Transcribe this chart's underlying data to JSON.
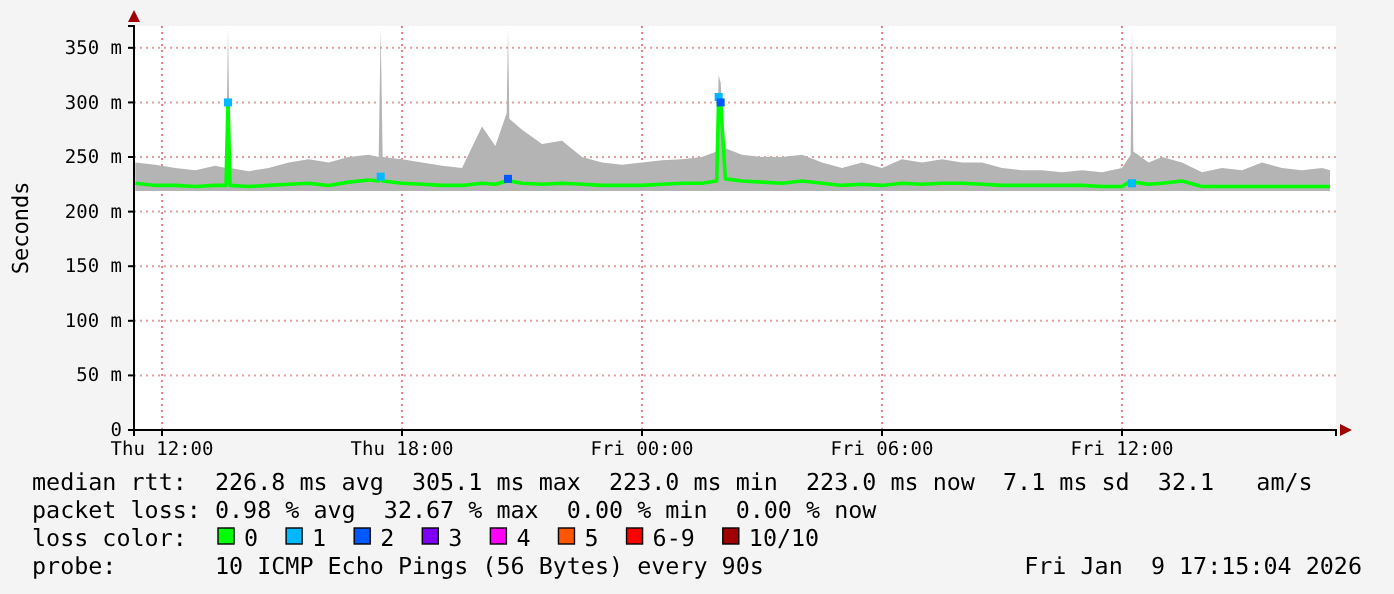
{
  "chart_data": {
    "type": "line",
    "ylabel": "Seconds",
    "legend_title": "loss color:",
    "legend": "bottom",
    "grid": true,
    "xlim": [
      "2026-01-08T11:18",
      "2026-01-09T17:21"
    ],
    "xticks": [
      {
        "value": "2026-01-08T12:00",
        "label": "Thu 12:00"
      },
      {
        "value": "2026-01-08T18:00",
        "label": "Thu 18:00"
      },
      {
        "value": "2026-01-09T00:00",
        "label": "Fri 00:00"
      },
      {
        "value": "2026-01-09T06:00",
        "label": "Fri 06:00"
      },
      {
        "value": "2026-01-09T12:00",
        "label": "Fri 12:00"
      }
    ],
    "ylim": [
      0,
      370
    ],
    "yticks": [
      0,
      {
        "value": 50,
        "label": "50 m"
      },
      {
        "value": 100,
        "label": "100 m"
      },
      {
        "value": 150,
        "label": "150 m"
      },
      {
        "value": 200,
        "label": "200 m"
      },
      {
        "value": 250,
        "label": "250 m"
      },
      {
        "value": 300,
        "label": "300 m"
      },
      {
        "value": 350,
        "label": "350 m"
      }
    ],
    "x": [
      "2026-01-08T11:20",
      "2026-01-08T11:50",
      "2026-01-08T12:20",
      "2026-01-08T12:50",
      "2026-01-08T13:20",
      "2026-01-08T13:36",
      "2026-01-08T13:39",
      "2026-01-08T13:42",
      "2026-01-08T14:10",
      "2026-01-08T14:40",
      "2026-01-08T15:10",
      "2026-01-08T15:40",
      "2026-01-08T16:10",
      "2026-01-08T16:40",
      "2026-01-08T17:10",
      "2026-01-08T17:25",
      "2026-01-08T17:28",
      "2026-01-08T17:31",
      "2026-01-08T18:00",
      "2026-01-08T18:30",
      "2026-01-08T19:00",
      "2026-01-08T19:30",
      "2026-01-08T20:00",
      "2026-01-08T20:20",
      "2026-01-08T20:37",
      "2026-01-08T20:39",
      "2026-01-08T20:41",
      "2026-01-08T21:00",
      "2026-01-08T21:30",
      "2026-01-08T22:00",
      "2026-01-08T22:30",
      "2026-01-08T23:00",
      "2026-01-08T23:30",
      "2026-01-09T00:00",
      "2026-01-09T00:30",
      "2026-01-09T01:00",
      "2026-01-09T01:30",
      "2026-01-09T01:52",
      "2026-01-09T01:55",
      "2026-01-09T01:58",
      "2026-01-09T02:05",
      "2026-01-09T02:30",
      "2026-01-09T03:00",
      "2026-01-09T03:30",
      "2026-01-09T04:00",
      "2026-01-09T04:30",
      "2026-01-09T05:00",
      "2026-01-09T05:30",
      "2026-01-09T06:00",
      "2026-01-09T06:30",
      "2026-01-09T07:00",
      "2026-01-09T07:30",
      "2026-01-09T08:00",
      "2026-01-09T08:30",
      "2026-01-09T09:00",
      "2026-01-09T09:30",
      "2026-01-09T10:00",
      "2026-01-09T10:30",
      "2026-01-09T11:00",
      "2026-01-09T11:30",
      "2026-01-09T12:00",
      "2026-01-09T12:13",
      "2026-01-09T12:15",
      "2026-01-09T12:17",
      "2026-01-09T12:40",
      "2026-01-09T13:00",
      "2026-01-09T13:30",
      "2026-01-09T14:00",
      "2026-01-09T14:30",
      "2026-01-09T15:00",
      "2026-01-09T15:30",
      "2026-01-09T16:00",
      "2026-01-09T16:30",
      "2026-01-09T17:00",
      "2026-01-09T17:12"
    ],
    "series": [
      {
        "name": "0",
        "color": "#00ff00",
        "lower": [
          219,
          219,
          219,
          219,
          219,
          219,
          219,
          219,
          219,
          219,
          219,
          219,
          219,
          219,
          219,
          219,
          219,
          219,
          219,
          219,
          219,
          219,
          219,
          219,
          219,
          219,
          219,
          219,
          219,
          219,
          219,
          219,
          219,
          219,
          219,
          219,
          219,
          219,
          219,
          219,
          219,
          219,
          219,
          219,
          219,
          219,
          219,
          219,
          219,
          219,
          219,
          219,
          219,
          219,
          219,
          219,
          219,
          219,
          219,
          219,
          219,
          219,
          219,
          219,
          219,
          219,
          219,
          219,
          219,
          219,
          219,
          219,
          219,
          219,
          219
        ],
        "upper": [
          245,
          243,
          240,
          238,
          242,
          240,
          367,
          240,
          237,
          240,
          245,
          248,
          245,
          250,
          252,
          250,
          367,
          250,
          248,
          245,
          242,
          240,
          278,
          260,
          290,
          367,
          285,
          275,
          262,
          265,
          250,
          245,
          243,
          245,
          247,
          248,
          250,
          255,
          325,
          318,
          258,
          252,
          250,
          250,
          252,
          245,
          240,
          245,
          240,
          248,
          245,
          248,
          245,
          245,
          240,
          238,
          238,
          236,
          238,
          236,
          240,
          252,
          367,
          255,
          245,
          250,
          245,
          236,
          240,
          238,
          245,
          240,
          238,
          240,
          238
        ],
        "values": [
          226,
          224,
          224,
          223,
          224,
          224,
          300,
          224,
          223,
          224,
          225,
          226,
          224,
          227,
          229,
          228,
          232,
          228,
          226,
          225,
          224,
          224,
          226,
          225,
          228,
          230,
          228,
          226,
          225,
          226,
          225,
          224,
          224,
          224,
          225,
          226,
          226,
          228,
          305,
          300,
          230,
          228,
          227,
          226,
          228,
          226,
          224,
          225,
          224,
          226,
          225,
          226,
          226,
          225,
          224,
          224,
          224,
          224,
          224,
          223,
          223,
          228,
          226,
          227,
          225,
          226,
          228,
          223,
          223,
          223,
          223,
          223,
          223,
          223,
          223
        ]
      },
      {
        "type": "scatter",
        "name": "1",
        "color": "#00b8ff",
        "marker": "square",
        "x": [
          "2026-01-08T13:39",
          "2026-01-08T17:28",
          "2026-01-09T01:55",
          "2026-01-09T12:15"
        ],
        "values": [
          300,
          232,
          305,
          226
        ]
      },
      {
        "type": "scatter",
        "name": "2",
        "color": "#0059ff",
        "marker": "square",
        "x": [
          "2026-01-08T20:39",
          "2026-01-09T01:58"
        ],
        "values": [
          230,
          300
        ]
      },
      {
        "type": "scatter",
        "name": "3",
        "color": "#7e00ff",
        "marker": "square",
        "values": [
          null,
          null,
          null,
          null,
          null,
          null,
          null,
          null,
          null,
          null,
          null,
          null,
          null,
          null,
          null,
          null,
          null,
          null,
          null,
          null,
          null,
          null,
          null,
          null,
          null,
          null,
          null,
          null,
          null,
          null,
          null,
          null,
          null,
          null,
          null,
          null,
          null,
          null,
          null,
          null,
          null,
          null,
          null,
          null,
          null,
          null,
          null,
          null,
          null,
          null,
          null,
          null,
          null,
          null,
          null,
          null,
          null,
          null,
          null,
          null,
          null,
          null,
          null,
          null,
          null,
          null,
          null,
          null,
          null,
          null,
          null,
          null,
          null,
          null,
          null
        ]
      },
      {
        "type": "scatter",
        "name": "4",
        "color": "#ff00ff",
        "marker": "square",
        "values": [
          null,
          null,
          null,
          null,
          null,
          null,
          null,
          null,
          null,
          null,
          null,
          null,
          null,
          null,
          null,
          null,
          null,
          null,
          null,
          null,
          null,
          null,
          null,
          null,
          null,
          null,
          null,
          null,
          null,
          null,
          null,
          null,
          null,
          null,
          null,
          null,
          null,
          null,
          null,
          null,
          null,
          null,
          null,
          null,
          null,
          null,
          null,
          null,
          null,
          null,
          null,
          null,
          null,
          null,
          null,
          null,
          null,
          null,
          null,
          null,
          null,
          null,
          null,
          null,
          null,
          null,
          null,
          null,
          null,
          null,
          null,
          null,
          null,
          null,
          null
        ]
      },
      {
        "type": "scatter",
        "name": "5",
        "color": "#ff5500",
        "marker": "square",
        "values": [
          null,
          null,
          null,
          null,
          null,
          null,
          null,
          null,
          null,
          null,
          null,
          null,
          null,
          null,
          null,
          null,
          null,
          null,
          null,
          null,
          null,
          null,
          null,
          null,
          null,
          null,
          null,
          null,
          null,
          null,
          null,
          null,
          null,
          null,
          null,
          null,
          null,
          null,
          null,
          null,
          null,
          null,
          null,
          null,
          null,
          null,
          null,
          null,
          null,
          null,
          null,
          null,
          null,
          null,
          null,
          null,
          null,
          null,
          null,
          null,
          null,
          null,
          null,
          null,
          null,
          null,
          null,
          null,
          null,
          null,
          null,
          null,
          null,
          null,
          null
        ]
      },
      {
        "type": "scatter",
        "name": "6-9",
        "color": "#ff0000",
        "marker": "square",
        "values": [
          null,
          null,
          null,
          null,
          null,
          null,
          null,
          null,
          null,
          null,
          null,
          null,
          null,
          null,
          null,
          null,
          null,
          null,
          null,
          null,
          null,
          null,
          null,
          null,
          null,
          null,
          null,
          null,
          null,
          null,
          null,
          null,
          null,
          null,
          null,
          null,
          null,
          null,
          null,
          null,
          null,
          null,
          null,
          null,
          null,
          null,
          null,
          null,
          null,
          null,
          null,
          null,
          null,
          null,
          null,
          null,
          null,
          null,
          null,
          null,
          null,
          null,
          null,
          null,
          null,
          null,
          null,
          null,
          null,
          null,
          null,
          null,
          null,
          null,
          null
        ]
      },
      {
        "type": "scatter",
        "name": "10/10",
        "color": "#a10000",
        "marker": "square",
        "values": [
          null,
          null,
          null,
          null,
          null,
          null,
          null,
          null,
          null,
          null,
          null,
          null,
          null,
          null,
          null,
          null,
          null,
          null,
          null,
          null,
          null,
          null,
          null,
          null,
          null,
          null,
          null,
          null,
          null,
          null,
          null,
          null,
          null,
          null,
          null,
          null,
          null,
          null,
          null,
          null,
          null,
          null,
          null,
          null,
          null,
          null,
          null,
          null,
          null,
          null,
          null,
          null,
          null,
          null,
          null,
          null,
          null,
          null,
          null,
          null,
          null,
          null,
          null,
          null,
          null,
          null,
          null,
          null,
          null,
          null,
          null,
          null,
          null,
          null,
          null
        ]
      }
    ],
    "annotations": [
      "median rtt:  226.8 ms avg  305.1 ms max  223.0 ms min  223.0 ms now  7.1 ms sd  32.1   am/s",
      "packet loss: 0.98 % avg  32.67 % max  0.00 % min  0.00 % now",
      "probe:       10 ICMP Echo Pings (56 Bytes) every 90s",
      "Fri Jan  9 17:15:04 2026"
    ]
  }
}
